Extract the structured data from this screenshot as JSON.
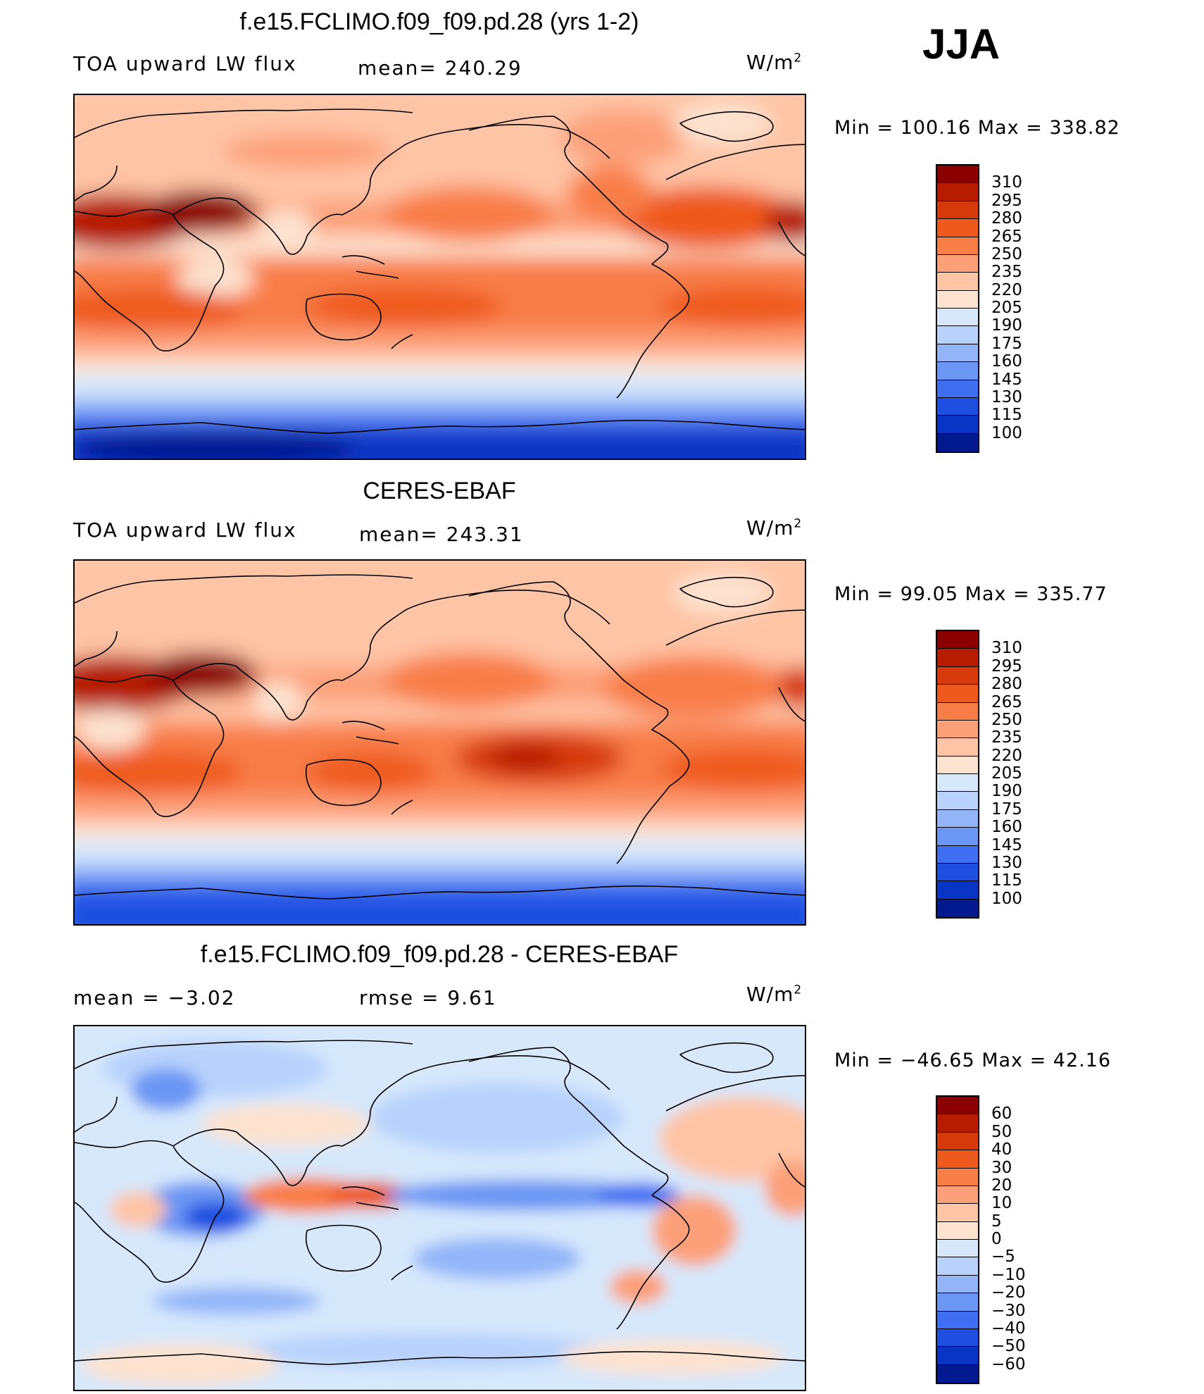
{
  "season": "JJA",
  "panels": [
    {
      "title": "f.e15.FCLIMO.f09_f09.pd.28 (yrs 1-2)",
      "left_label": "TOA upward LW flux",
      "center_label": "mean=  240.29",
      "units_base": "W/m",
      "units_exp": "2",
      "minmax": "Min  =  100.16  Max  =  338.82",
      "colorbar": {
        "colors": [
          "#8b0000",
          "#b51c00",
          "#d63a0a",
          "#ee5a1e",
          "#f87e48",
          "#fca07a",
          "#fec4a6",
          "#fde3d0",
          "#d7e8fb",
          "#b8d2fb",
          "#93b5f8",
          "#6b96f3",
          "#3f6ff0",
          "#1f4fe0",
          "#0a34c4",
          "#02198f"
        ],
        "labels": [
          "310",
          "295",
          "280",
          "265",
          "250",
          "235",
          "220",
          "205",
          "190",
          "175",
          "160",
          "145",
          "130",
          "115",
          "100"
        ]
      },
      "chart_data": {
        "type": "heatmap",
        "title": "f.e15.FCLIMO.f09_f09.pd.28 (yrs 1-2)",
        "variable": "TOA upward LW flux",
        "units": "W/m2",
        "mean": 240.29,
        "min": 100.16,
        "max": 338.82,
        "contour_levels": [
          100,
          115,
          130,
          145,
          160,
          175,
          190,
          205,
          220,
          235,
          250,
          265,
          280,
          295,
          310
        ]
      }
    },
    {
      "title": "CERES-EBAF",
      "left_label": "TOA upward LW flux",
      "center_label": "mean=  243.31",
      "units_base": "W/m",
      "units_exp": "2",
      "minmax": "Min  =    99.05  Max  =  335.77",
      "colorbar": {
        "colors": [
          "#8b0000",
          "#b51c00",
          "#d63a0a",
          "#ee5a1e",
          "#f87e48",
          "#fca07a",
          "#fec4a6",
          "#fde3d0",
          "#d7e8fb",
          "#b8d2fb",
          "#93b5f8",
          "#6b96f3",
          "#3f6ff0",
          "#1f4fe0",
          "#0a34c4",
          "#02198f"
        ],
        "labels": [
          "310",
          "295",
          "280",
          "265",
          "250",
          "235",
          "220",
          "205",
          "190",
          "175",
          "160",
          "145",
          "130",
          "115",
          "100"
        ]
      },
      "chart_data": {
        "type": "heatmap",
        "title": "CERES-EBAF",
        "variable": "TOA upward LW flux",
        "units": "W/m2",
        "mean": 243.31,
        "min": 99.05,
        "max": 335.77,
        "contour_levels": [
          100,
          115,
          130,
          145,
          160,
          175,
          190,
          205,
          220,
          235,
          250,
          265,
          280,
          295,
          310
        ]
      }
    },
    {
      "title": "f.e15.FCLIMO.f09_f09.pd.28 - CERES-EBAF",
      "left_label": "mean  =     −3.02",
      "center_label": "rmse  =      9.61",
      "units_base": "W/m",
      "units_exp": "2",
      "minmax": "Min  =  −46.65  Max  =    42.16",
      "colorbar": {
        "colors": [
          "#8b0000",
          "#b51c00",
          "#d63a0a",
          "#ee5a1e",
          "#f87e48",
          "#fca07a",
          "#fec4a6",
          "#fde3d0",
          "#d7e8fb",
          "#b8d2fb",
          "#93b5f8",
          "#6b96f3",
          "#3f6ff0",
          "#1f4fe0",
          "#0a34c4",
          "#02198f"
        ],
        "labels": [
          "60",
          "50",
          "40",
          "30",
          "20",
          "10",
          "5",
          "0",
          "−5",
          "−10",
          "−20",
          "−30",
          "−40",
          "−50",
          "−60"
        ]
      },
      "chart_data": {
        "type": "heatmap",
        "title": "f.e15.FCLIMO.f09_f09.pd.28 - CERES-EBAF",
        "units": "W/m2",
        "mean": -3.02,
        "rmse": 9.61,
        "min": -46.65,
        "max": 42.16,
        "contour_levels": [
          -60,
          -50,
          -40,
          -30,
          -20,
          -10,
          -5,
          0,
          5,
          10,
          20,
          30,
          40,
          50,
          60
        ]
      }
    }
  ]
}
